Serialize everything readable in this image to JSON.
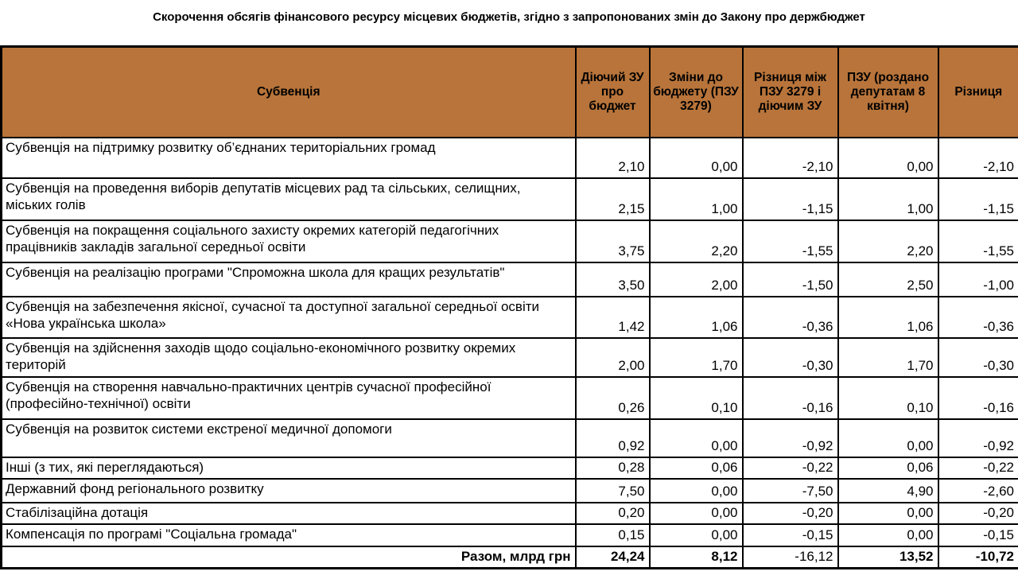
{
  "title": "Скорочення обсягів фінансового ресурсу місцевих бюджетів, згідно з запропонованих змін до Закону про держбюджет",
  "colors": {
    "header_bg": "#B8743A",
    "border": "#000000",
    "text": "#000000"
  },
  "chart_data": {
    "type": "table",
    "title": "Скорочення обсягів фінансового ресурсу місцевих бюджетів, згідно з запропонованих змін до Закону про держбюджет",
    "units": "млрд грн",
    "columns": [
      "Субвенція",
      "Діючий ЗУ про бюджет",
      "Зміни до бюджету (ПЗУ 3279)",
      "Різниця між ПЗУ 3279 і діючим ЗУ",
      "ПЗУ (роздано депутатам 8 квітня)",
      "Різниця"
    ],
    "rows": [
      {
        "label": "Субвенція на підтримку розвитку об’єднаних територіальних громад",
        "values": [
          "2,10",
          "0,00",
          "-2,10",
          "0,00",
          "-2,10"
        ]
      },
      {
        "label": "Субвенція на проведення виборів депутатів місцевих рад та сільських, селищних, міських голів",
        "values": [
          "2,15",
          "1,00",
          "-1,15",
          "1,00",
          "-1,15"
        ]
      },
      {
        "label": "Субвенція на покращення соціального захисту окремих категорій педагогічних працівників закладів загальної середньої освіти",
        "values": [
          "3,75",
          "2,20",
          "-1,55",
          "2,20",
          "-1,55"
        ]
      },
      {
        "label": "Субвенція на реалізацію програми \"Спроможна школа для кращих результатів\"",
        "values": [
          "3,50",
          "2,00",
          "-1,50",
          "2,50",
          "-1,00"
        ]
      },
      {
        "label": "Субвенція на забезпечення якісної, сучасної та доступної загальної середньої освіти «Нова українська школа»",
        "values": [
          "1,42",
          "1,06",
          "-0,36",
          "1,06",
          "-0,36"
        ]
      },
      {
        "label": "Субвенція на здійснення заходів щодо соціально-економічного розвитку окремих територій",
        "values": [
          "2,00",
          "1,70",
          "-0,30",
          "1,70",
          "-0,30"
        ]
      },
      {
        "label": "Субвенція на створення навчально-практичних центрів сучасної професійної (професійно-технічної) освіти",
        "values": [
          "0,26",
          "0,10",
          "-0,16",
          "0,10",
          "-0,16"
        ]
      },
      {
        "label": "Субвенція на розвиток системи екстреної медичної допомоги",
        "values": [
          "0,92",
          "0,00",
          "-0,92",
          "0,00",
          "-0,92"
        ]
      },
      {
        "label": "Інші (з тих, які переглядаються)",
        "values": [
          "0,28",
          "0,06",
          "-0,22",
          "0,06",
          "-0,22"
        ]
      },
      {
        "label": "Державний фонд регіонального розвитку",
        "values": [
          "7,50",
          "0,00",
          "-7,50",
          "4,90",
          "-2,60"
        ]
      },
      {
        "label": "Стабілізаційна дотація",
        "values": [
          "0,20",
          "0,00",
          "-0,20",
          "0,00",
          "-0,20"
        ]
      },
      {
        "label": "Компенсація по програмі \"Соціальна громада\"",
        "values": [
          "0,15",
          "0,00",
          "-0,15",
          "0,00",
          "-0,15"
        ]
      }
    ],
    "total": {
      "label": "Разом, млрд грн",
      "values": [
        "24,24",
        "8,12",
        "-16,12",
        "13,52",
        "-10,72"
      ]
    }
  }
}
